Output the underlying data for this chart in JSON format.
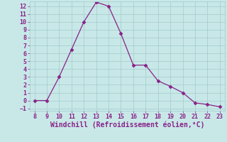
{
  "x": [
    8,
    9,
    10,
    11,
    12,
    13,
    14,
    15,
    16,
    17,
    18,
    19,
    20,
    21,
    22,
    23
  ],
  "y": [
    0,
    0,
    3,
    6.5,
    10,
    12.5,
    12,
    8.5,
    4.5,
    4.5,
    2.5,
    1.8,
    1,
    -0.3,
    -0.5,
    -0.8
  ],
  "line_color": "#882288",
  "marker": "D",
  "marker_size": 2.5,
  "bg_color": "#c8e8e8",
  "grid_color": "#a8cece",
  "xlabel": "Windchill (Refroidissement éolien,°C)",
  "xlim_min": 7.6,
  "xlim_max": 23.4,
  "ylim_min": -1.3,
  "ylim_max": 12.6,
  "xticks": [
    8,
    9,
    10,
    11,
    12,
    13,
    14,
    15,
    16,
    17,
    18,
    19,
    20,
    21,
    22,
    23
  ],
  "yticks": [
    -1,
    0,
    1,
    2,
    3,
    4,
    5,
    6,
    7,
    8,
    9,
    10,
    11,
    12
  ],
  "tick_color": "#882288",
  "label_color": "#882288",
  "font_size": 6.0,
  "xlabel_font_size": 7.0
}
